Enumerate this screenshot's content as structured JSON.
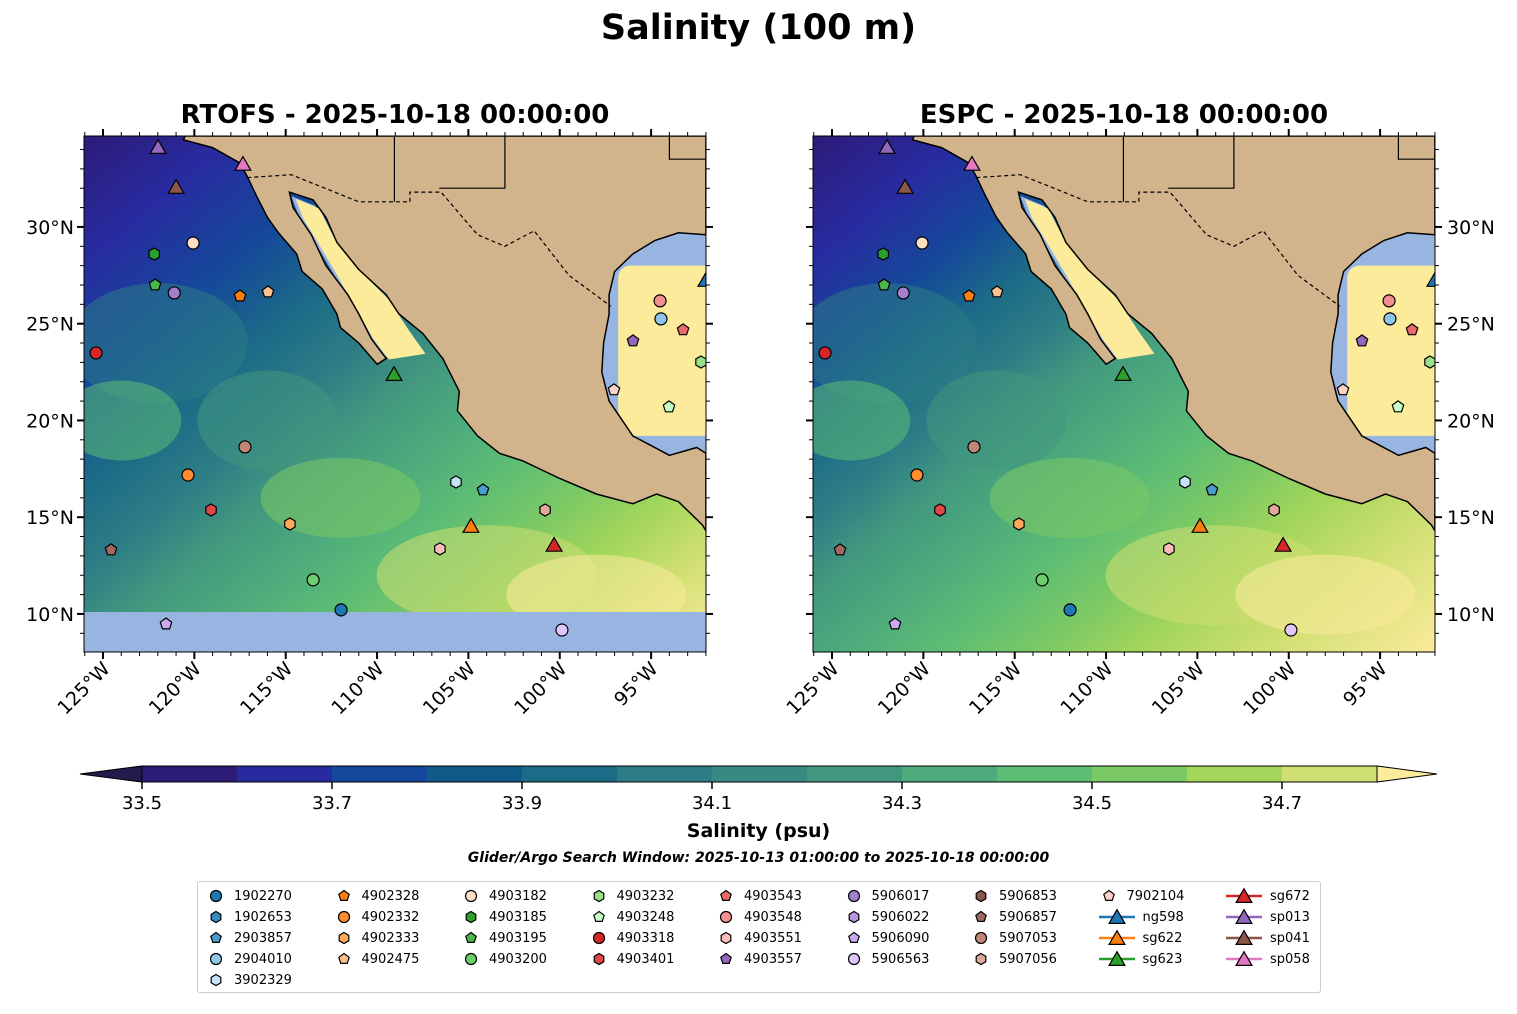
{
  "title": "Salinity (100 m)",
  "panels": [
    {
      "title": "RTOFS - 2025-10-18 00:00:00",
      "model": "RTOFS"
    },
    {
      "title": "ESPC - 2025-10-18 00:00:00",
      "model": "ESPC"
    }
  ],
  "chart_data": {
    "type": "map-contour",
    "extent": {
      "lon": [
        -126.04,
        -92.0
      ],
      "lat": [
        8.0,
        34.7
      ]
    },
    "x_ticks": [
      {
        "v": -125,
        "label": "125°W"
      },
      {
        "v": -120,
        "label": "120°W"
      },
      {
        "v": -115,
        "label": "115°W"
      },
      {
        "v": -110,
        "label": "110°W"
      },
      {
        "v": -105,
        "label": "105°W"
      },
      {
        "v": -100,
        "label": "100°W"
      },
      {
        "v": -95,
        "label": "95°W"
      }
    ],
    "y_ticks": [
      {
        "v": 10,
        "label": "10°N"
      },
      {
        "v": 15,
        "label": "15°N"
      },
      {
        "v": 20,
        "label": "20°N"
      },
      {
        "v": 25,
        "label": "25°N"
      },
      {
        "v": 30,
        "label": "30°N"
      }
    ],
    "colorbar": {
      "label": "Salinity (psu)",
      "levels": [
        33.5,
        33.6,
        33.7,
        33.8,
        33.9,
        34.0,
        34.1,
        34.2,
        34.3,
        34.4,
        34.5,
        34.6,
        34.7,
        34.8
      ],
      "colors": [
        "#2d1b78",
        "#282ba0",
        "#15489a",
        "#0f5a88",
        "#1c6b87",
        "#2c7c86",
        "#368a82",
        "#42987e",
        "#4dab7c",
        "#5dbd74",
        "#7bc965",
        "#a3d65a",
        "#cfdf72"
      ],
      "under": "#241a4e",
      "over": "#fbeb9a",
      "ticks": [
        {
          "v": 33.5,
          "label": "33.5"
        },
        {
          "v": 33.7,
          "label": "33.7"
        },
        {
          "v": 33.9,
          "label": "33.9"
        },
        {
          "v": 34.1,
          "label": "34.1"
        },
        {
          "v": 34.3,
          "label": "34.3"
        },
        {
          "v": 34.5,
          "label": "34.5"
        },
        {
          "v": 34.7,
          "label": "34.7"
        }
      ]
    },
    "window_text": "Glider/Argo Search Window: 2025-10-13 01:00:00 to 2025-10-18 00:00:00",
    "platforms": [
      {
        "id": "1902270",
        "shape": "circle",
        "color": "#1f77b4",
        "lon": -111.97,
        "lat": 10.21
      },
      {
        "id": "1902653",
        "shape": "hexagon",
        "color": "#3a8bc2"
      },
      {
        "id": "2903857",
        "shape": "pentagon",
        "color": "#4a9bd0",
        "lon": -104.2,
        "lat": 16.41
      },
      {
        "id": "2904010",
        "shape": "circle",
        "color": "#8fc5ea",
        "lon": -94.46,
        "lat": 25.25
      },
      {
        "id": "3902329",
        "shape": "hexagon",
        "color": "#c6e4f7",
        "lon": -105.68,
        "lat": 16.82
      },
      {
        "id": "4902328",
        "shape": "pentagon",
        "color": "#ff7f0e",
        "lon": -117.5,
        "lat": 26.43
      },
      {
        "id": "4902332",
        "shape": "circle",
        "color": "#ff8c2e",
        "lon": -120.35,
        "lat": 17.18
      },
      {
        "id": "4902333",
        "shape": "hexagon",
        "color": "#ffa75a",
        "lon": -114.77,
        "lat": 14.65
      },
      {
        "id": "4902475",
        "shape": "pentagon",
        "color": "#ffc28e",
        "lon": -115.97,
        "lat": 26.64
      },
      {
        "id": "4903182",
        "shape": "circle",
        "color": "#ffe0c2",
        "lon": -120.07,
        "lat": 29.17
      },
      {
        "id": "4903185",
        "shape": "hexagon",
        "color": "#2ca02c",
        "lon": -122.2,
        "lat": 28.6
      },
      {
        "id": "4903195",
        "shape": "pentagon",
        "color": "#4cb84c",
        "lon": -122.15,
        "lat": 27.0
      },
      {
        "id": "4903200",
        "shape": "circle",
        "color": "#6ccf6c",
        "lon": -113.5,
        "lat": 11.76
      },
      {
        "id": "4903232",
        "shape": "hexagon",
        "color": "#98df8a",
        "lon": -92.27,
        "lat": 23.02
      },
      {
        "id": "4903248",
        "shape": "pentagon",
        "color": "#c6ffc6",
        "lon": -94.02,
        "lat": 20.7
      },
      {
        "id": "4903318",
        "shape": "circle",
        "color": "#d62728",
        "lon": -125.38,
        "lat": 23.49
      },
      {
        "id": "4903401",
        "shape": "hexagon",
        "color": "#e04848",
        "lon": -119.09,
        "lat": 15.37
      },
      {
        "id": "4903543",
        "shape": "pentagon",
        "color": "#e86a6a",
        "lon": -93.25,
        "lat": 24.68
      },
      {
        "id": "4903548",
        "shape": "circle",
        "color": "#f09090",
        "lon": -94.51,
        "lat": 26.18
      },
      {
        "id": "4903551",
        "shape": "hexagon",
        "color": "#fbbcbc",
        "lon": -106.56,
        "lat": 13.36
      },
      {
        "id": "4903557",
        "shape": "pentagon",
        "color": "#9467bd",
        "lon": -95.99,
        "lat": 24.11
      },
      {
        "id": "5906017",
        "shape": "circle",
        "color": "#a47fd0",
        "lon": -121.1,
        "lat": 26.59
      },
      {
        "id": "5906022",
        "shape": "hexagon",
        "color": "#b895e0"
      },
      {
        "id": "5906090",
        "shape": "pentagon",
        "color": "#ccaaf0",
        "lon": -121.55,
        "lat": 9.48
      },
      {
        "id": "5906563",
        "shape": "circle",
        "color": "#e0c6fa",
        "lon": -99.88,
        "lat": 9.17
      },
      {
        "id": "5906853",
        "shape": "hexagon",
        "color": "#8c564b"
      },
      {
        "id": "5906857",
        "shape": "pentagon",
        "color": "#a06a60",
        "lon": -124.56,
        "lat": 13.31
      },
      {
        "id": "5907053",
        "shape": "circle",
        "color": "#c08778",
        "lon": -117.23,
        "lat": 18.63
      },
      {
        "id": "5907056",
        "shape": "hexagon",
        "color": "#e0a898",
        "lon": -100.8,
        "lat": 15.37
      },
      {
        "id": "7902104",
        "shape": "pentagon",
        "color": "#fcd2c6",
        "lon": -97.03,
        "lat": 21.58
      },
      {
        "id": "ng598",
        "shape": "triangle",
        "color": "#1f77b4",
        "lon": -92.0,
        "lat": 27.26
      },
      {
        "id": "sg622",
        "shape": "triangle",
        "color": "#ff7f0e",
        "lon": -104.86,
        "lat": 14.55
      },
      {
        "id": "sg623",
        "shape": "triangle",
        "color": "#2ca02c",
        "lon": -109.07,
        "lat": 22.4
      },
      {
        "id": "sg672",
        "shape": "triangle",
        "color": "#d62728",
        "lon": -100.31,
        "lat": 13.57
      },
      {
        "id": "sp013",
        "shape": "triangle",
        "color": "#9467bd",
        "lon": -121.99,
        "lat": 34.13
      },
      {
        "id": "sp041",
        "shape": "triangle",
        "color": "#8c564b",
        "lon": -121.0,
        "lat": 32.07
      },
      {
        "id": "sp058",
        "shape": "triangle",
        "color": "#e377c2",
        "lon": -117.34,
        "lat": 33.26
      }
    ]
  }
}
